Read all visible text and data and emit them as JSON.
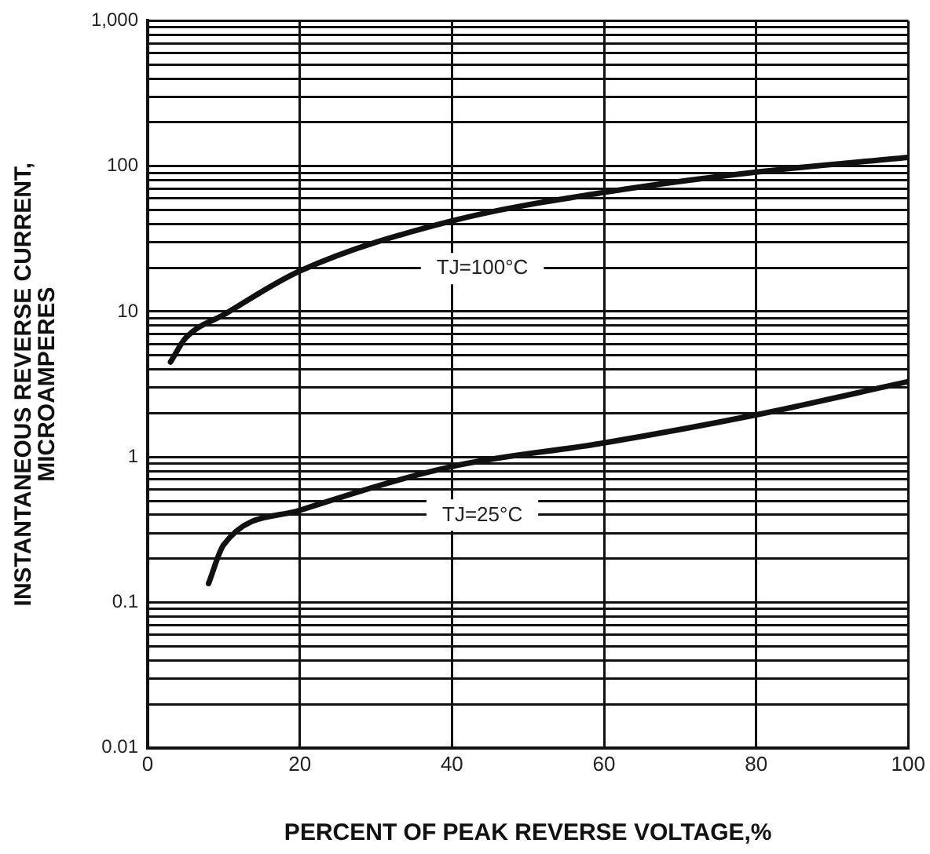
{
  "chart_data": {
    "type": "line",
    "xlabel": "PERCENT OF PEAK REVERSE VOLTAGE,%",
    "ylabel": "INSTANTANEOUS REVERSE CURRENT,\nMICROAMPERES",
    "series": [
      {
        "name": "TJ=100°C",
        "color": "#111111",
        "x": [
          3,
          5,
          10,
          20,
          40,
          60,
          80,
          100
        ],
        "values": [
          4.5,
          6.6,
          9.5,
          19,
          42,
          66,
          91,
          115
        ]
      },
      {
        "name": "TJ=25°C",
        "color": "#111111",
        "x": [
          8,
          10,
          20,
          40,
          60,
          80,
          100
        ],
        "values": [
          0.135,
          0.25,
          0.43,
          0.86,
          1.25,
          1.95,
          3.3
        ]
      }
    ],
    "log": "y",
    "xlim": [
      0,
      100
    ],
    "xticks": [
      0,
      20,
      40,
      60,
      80,
      100
    ],
    "ylim": [
      0.01,
      1000
    ],
    "yticks": [
      {
        "value": 0.01,
        "label": "0.01"
      },
      {
        "value": 0.02,
        "label": null
      },
      {
        "value": 0.03,
        "label": null
      },
      {
        "value": 0.04,
        "label": null
      },
      {
        "value": 0.05,
        "label": null
      },
      {
        "value": 0.06,
        "label": null
      },
      {
        "value": 0.07,
        "label": null
      },
      {
        "value": 0.08,
        "label": null
      },
      {
        "value": 0.09,
        "label": null
      },
      {
        "value": 0.1,
        "label": "0.1"
      },
      {
        "value": 0.2,
        "label": null
      },
      {
        "value": 0.3,
        "label": null
      },
      {
        "value": 0.4,
        "label": null
      },
      {
        "value": 0.5,
        "label": null
      },
      {
        "value": 0.6,
        "label": null
      },
      {
        "value": 0.7,
        "label": null
      },
      {
        "value": 0.8,
        "label": null
      },
      {
        "value": 0.9,
        "label": null
      },
      {
        "value": 1,
        "label": "1"
      },
      {
        "value": 2,
        "label": null
      },
      {
        "value": 3,
        "label": null
      },
      {
        "value": 4,
        "label": null
      },
      {
        "value": 5,
        "label": null
      },
      {
        "value": 6,
        "label": null
      },
      {
        "value": 7,
        "label": null
      },
      {
        "value": 8,
        "label": null
      },
      {
        "value": 9,
        "label": null
      },
      {
        "value": 10,
        "label": "10"
      },
      {
        "value": 20,
        "label": null
      },
      {
        "value": 30,
        "label": null
      },
      {
        "value": 40,
        "label": null
      },
      {
        "value": 50,
        "label": null
      },
      {
        "value": 60,
        "label": null
      },
      {
        "value": 70,
        "label": null
      },
      {
        "value": 80,
        "label": null
      },
      {
        "value": 90,
        "label": null
      },
      {
        "value": 100,
        "label": "100"
      },
      {
        "value": 200,
        "label": null
      },
      {
        "value": 300,
        "label": null
      },
      {
        "value": 400,
        "label": null
      },
      {
        "value": 500,
        "label": null
      },
      {
        "value": 600,
        "label": null
      },
      {
        "value": 700,
        "label": null
      },
      {
        "value": 800,
        "label": null
      },
      {
        "value": 900,
        "label": null
      },
      {
        "value": 1000,
        "label": "1,000"
      }
    ],
    "grid": true,
    "legend": false,
    "marker": "none",
    "line_style": "solid"
  }
}
